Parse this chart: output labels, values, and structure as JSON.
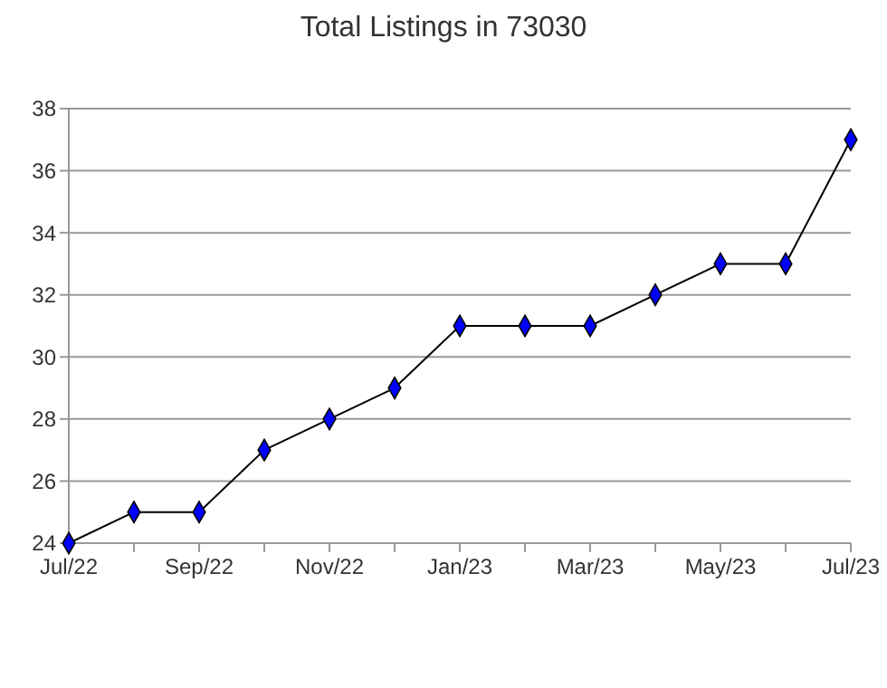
{
  "chart_data": {
    "type": "line",
    "title": "Total Listings in 73030",
    "categories": [
      "Jul/22",
      null,
      "Sep/22",
      null,
      "Nov/22",
      null,
      "Jan/23",
      null,
      "Mar/23",
      null,
      "May/23",
      null,
      "Jul/23"
    ],
    "series": [
      {
        "color": "#0000ff",
        "values": [
          24,
          25,
          25,
          27,
          28,
          29,
          31,
          31,
          31,
          32,
          33,
          33,
          37
        ]
      }
    ],
    "ylim": [
      24,
      38
    ],
    "yticks": [
      24,
      26,
      28,
      30,
      32,
      34,
      36,
      38
    ],
    "grid": "y",
    "marker": "diamond",
    "line_style": "solid"
  }
}
